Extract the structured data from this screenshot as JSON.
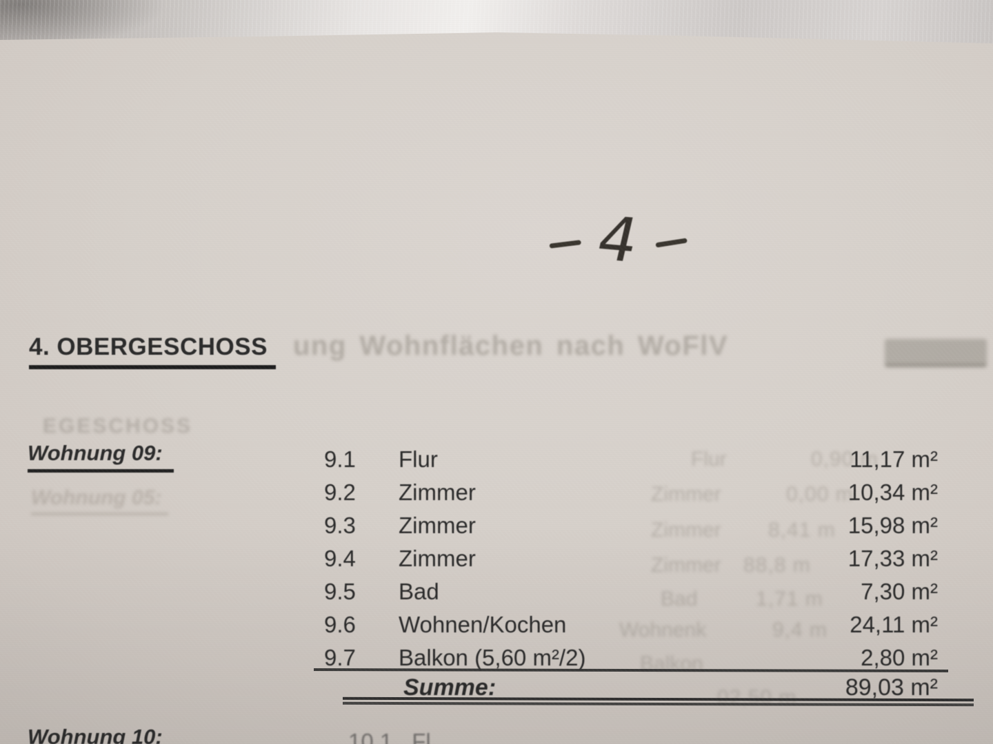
{
  "colors": {
    "paper": "#d6d0ca",
    "ink": "#2b2b2b",
    "ghost_ink": "#76706a",
    "table_gloss": "#eceae8"
  },
  "handwritten_page_number": {
    "display": "- 4 -",
    "digit": "4"
  },
  "heading": {
    "text": "4. OBERGESCHOSS"
  },
  "apartment09": {
    "label": "Wohnung 09:",
    "rows": [
      {
        "no": "9.1",
        "room": "Flur",
        "area": "11,17 m²"
      },
      {
        "no": "9.2",
        "room": "Zimmer",
        "area": "10,34 m²"
      },
      {
        "no": "9.3",
        "room": "Zimmer",
        "area": "15,98 m²"
      },
      {
        "no": "9.4",
        "room": "Zimmer",
        "area": "17,33 m²"
      },
      {
        "no": "9.5",
        "room": "Bad",
        "area": "7,30 m²"
      },
      {
        "no": "9.6",
        "room": "Wohnen/Kochen",
        "area": "24,11 m²"
      },
      {
        "no": "9.7",
        "room": "Balkon (5,60 m²/2)",
        "area": "2,80 m²"
      }
    ],
    "summe_label": "Summe:",
    "summe_value": "89,03 m²"
  },
  "apartment10_partial": {
    "label": "Wohnung 10:",
    "row_no": "10.1",
    "row_room_partial": "Fl"
  },
  "ghosts": {
    "header_bleed": "ung Wohnflächen nach WoFlV",
    "left_top": "EGESCHOSS",
    "left_label": "Wohnung 05:",
    "rooms": [
      "Flur",
      "Zimmer",
      "Zimmer",
      "Zimmer",
      "Bad",
      "Wohnenk",
      "Balkon"
    ],
    "numbers": [
      "0,90 m",
      "0,00 m",
      "8,41 m",
      "88,8 m",
      "1,71 m",
      "9,4 m",
      "02,50 m"
    ]
  }
}
